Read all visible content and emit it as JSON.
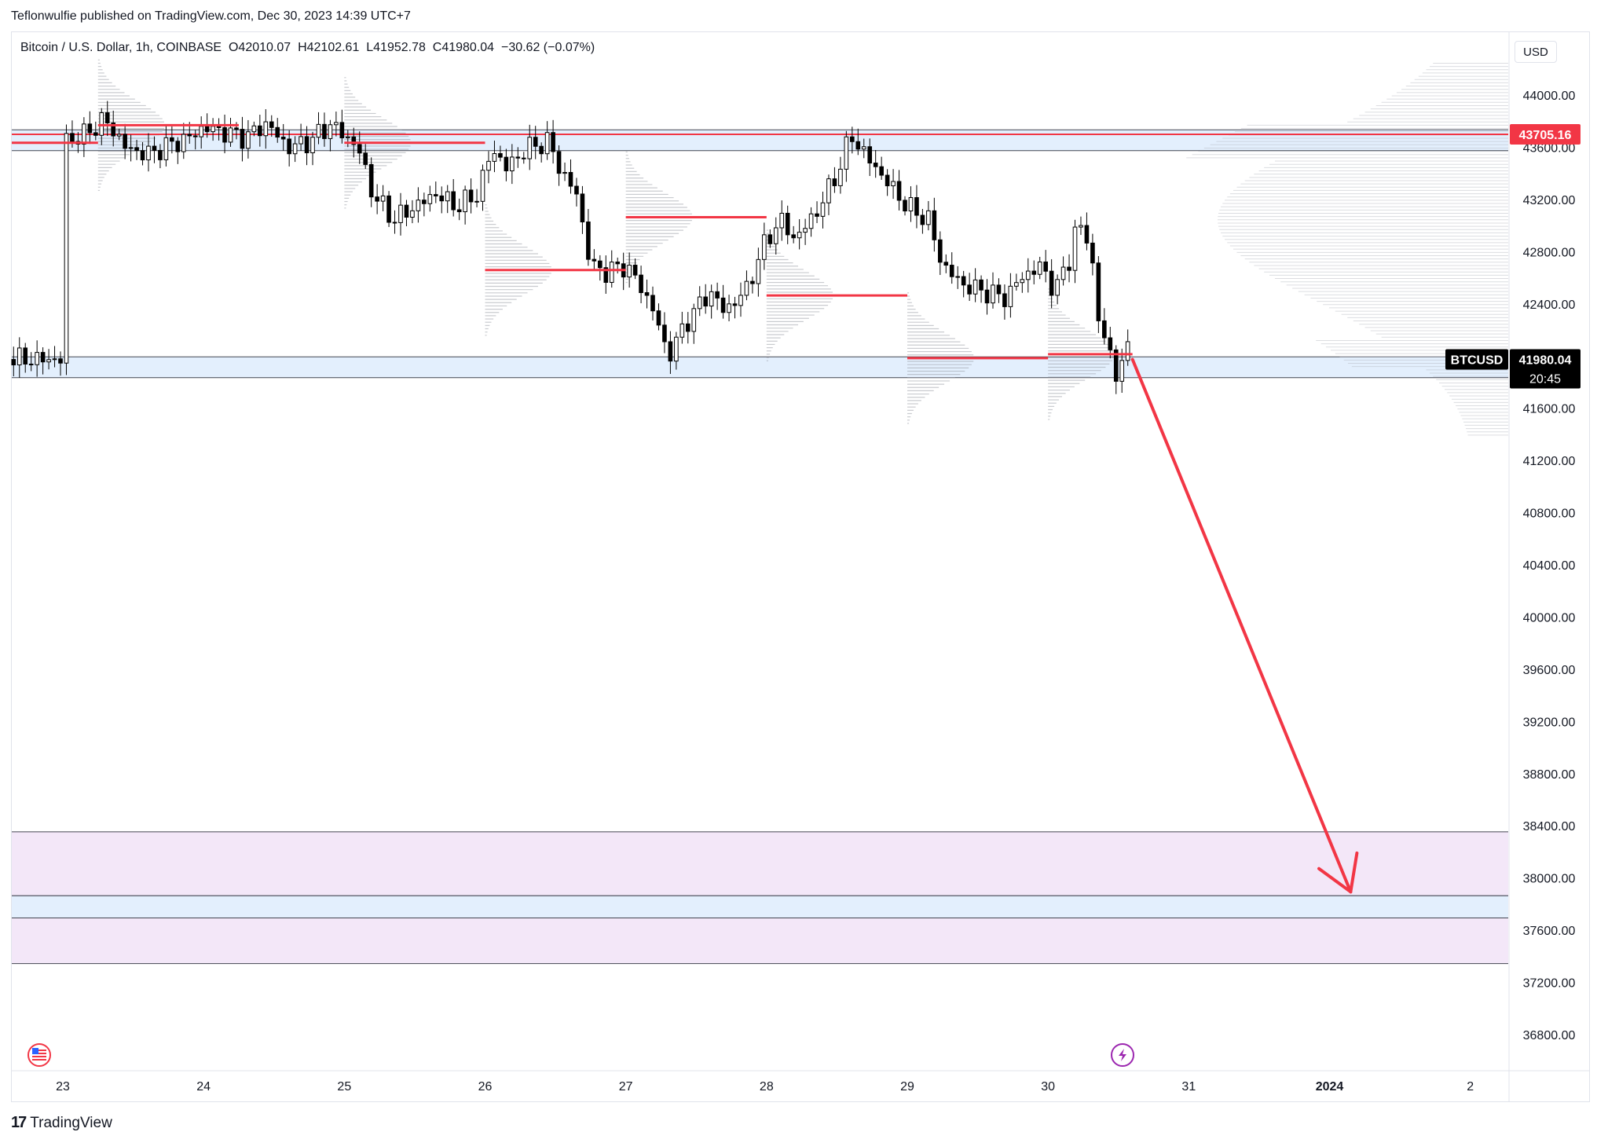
{
  "header": {
    "publisher_text": "Teflonwulfie published on TradingView.com, Dec 30, 2023 14:39 UTC+7"
  },
  "legend": {
    "symbol": "Bitcoin / U.S. Dollar, 1h, COINBASE",
    "open": "O42010.07",
    "high": "H42102.61",
    "low": "L41952.78",
    "close": "C41980.04",
    "change": "−30.62 (−0.07%)"
  },
  "currency": "USD",
  "branding": {
    "logo_text": "17",
    "name": "TradingView"
  },
  "colors": {
    "bull": "#ffffff",
    "bear": "#000000",
    "accent_red": "#f23645",
    "arrow_red": "#f23645",
    "blue_zone": "#e3effd",
    "purple_zone": "#f3e7f8",
    "profile_gray": "#b2b5be"
  },
  "price_labels": {
    "alert_price": "43705.16",
    "current_symbol": "BTCUSD",
    "current_price": "41980.04",
    "countdown": "20:45"
  },
  "chart_data": {
    "type": "candlestick",
    "title": "Bitcoin / U.S. Dollar, 1h, COINBASE",
    "y_ticks": [
      44000,
      43600,
      43200,
      42800,
      42400,
      42000,
      41600,
      41200,
      40800,
      40400,
      40000,
      39600,
      39200,
      38800,
      38400,
      38000,
      37600,
      37200,
      36800
    ],
    "y_tick_labels": [
      "44000.00",
      "43600.00",
      "43200.00",
      "42800.00",
      "42400.00",
      "42000.00",
      "41600.00",
      "41200.00",
      "40800.00",
      "40400.00",
      "40000.00",
      "39600.00",
      "39200.00",
      "38800.00",
      "38400.00",
      "38000.00",
      "37600.00",
      "37200.00",
      "36800.00"
    ],
    "ylim": [
      36500,
      44400
    ],
    "x_labels": [
      "23",
      "24",
      "25",
      "26",
      "27",
      "28",
      "29",
      "30",
      "31",
      "2024",
      "2"
    ],
    "x_label_days": [
      0,
      1,
      2,
      3,
      4,
      5,
      6,
      7,
      8,
      9,
      10
    ],
    "xlim_days": [
      -0.4,
      10.35
    ],
    "last_candle_day": 7.6,
    "swing_points": [
      [
        0.0,
        43650
      ],
      [
        0.15,
        43700
      ],
      [
        0.3,
        43820
      ],
      [
        0.45,
        43600
      ],
      [
        0.6,
        43550
      ],
      [
        0.75,
        43620
      ],
      [
        0.9,
        43680
      ],
      [
        1.0,
        43760
      ],
      [
        1.15,
        43720
      ],
      [
        1.3,
        43680
      ],
      [
        1.45,
        43790
      ],
      [
        1.6,
        43600
      ],
      [
        1.75,
        43650
      ],
      [
        1.9,
        43780
      ],
      [
        2.0,
        43700
      ],
      [
        2.1,
        43600
      ],
      [
        2.2,
        43250
      ],
      [
        2.35,
        43050
      ],
      [
        2.5,
        43150
      ],
      [
        2.65,
        43250
      ],
      [
        2.8,
        43150
      ],
      [
        2.95,
        43250
      ],
      [
        3.05,
        43600
      ],
      [
        3.15,
        43450
      ],
      [
        3.3,
        43600
      ],
      [
        3.45,
        43650
      ],
      [
        3.55,
        43400
      ],
      [
        3.65,
        43250
      ],
      [
        3.75,
        42700
      ],
      [
        3.85,
        42650
      ],
      [
        4.0,
        42700
      ],
      [
        4.1,
        42550
      ],
      [
        4.2,
        42350
      ],
      [
        4.3,
        42000
      ],
      [
        4.45,
        42300
      ],
      [
        4.6,
        42500
      ],
      [
        4.7,
        42350
      ],
      [
        4.85,
        42500
      ],
      [
        5.0,
        42900
      ],
      [
        5.1,
        43050
      ],
      [
        5.2,
        42900
      ],
      [
        5.35,
        43100
      ],
      [
        5.5,
        43400
      ],
      [
        5.6,
        43700
      ],
      [
        5.7,
        43550
      ],
      [
        5.85,
        43350
      ],
      [
        6.0,
        43150
      ],
      [
        6.15,
        43050
      ],
      [
        6.25,
        42700
      ],
      [
        6.4,
        42550
      ],
      [
        6.55,
        42500
      ],
      [
        6.7,
        42450
      ],
      [
        6.8,
        42600
      ],
      [
        6.95,
        42700
      ],
      [
        7.05,
        42500
      ],
      [
        7.15,
        42750
      ],
      [
        7.2,
        43000
      ],
      [
        7.3,
        42900
      ],
      [
        7.35,
        42300
      ],
      [
        7.45,
        42000
      ],
      [
        7.5,
        41800
      ],
      [
        7.55,
        42100
      ],
      [
        7.6,
        41980
      ]
    ],
    "daily_value_area_poc": [
      {
        "start_day": -0.4,
        "end_day": 0.25,
        "price": 43640
      },
      {
        "start_day": 0.25,
        "end_day": 1.25,
        "price": 43775
      },
      {
        "start_day": 2.0,
        "end_day": 3.0,
        "price": 43640
      },
      {
        "start_day": 3.0,
        "end_day": 4.0,
        "price": 42665
      },
      {
        "start_day": 4.0,
        "end_day": 5.0,
        "price": 43070
      },
      {
        "start_day": 5.0,
        "end_day": 6.0,
        "price": 42470
      },
      {
        "start_day": 6.0,
        "end_day": 7.0,
        "price": 41990
      },
      {
        "start_day": 7.0,
        "end_day": 7.6,
        "price": 42020
      }
    ],
    "zones": [
      {
        "kind": "blue",
        "top": 43740,
        "bottom": 43580
      },
      {
        "kind": "blue",
        "top": 42000,
        "bottom": 41840
      },
      {
        "kind": "purple",
        "top": 38360,
        "bottom": 37870
      },
      {
        "kind": "blue",
        "top": 37870,
        "bottom": 37700
      },
      {
        "kind": "purple",
        "top": 37700,
        "bottom": 37350
      }
    ],
    "horizontal_lines": [
      43705.16
    ],
    "projection_arrow": {
      "from_day": 7.6,
      "from_price": 41980,
      "to_day": 9.15,
      "to_price": 37900
    }
  }
}
